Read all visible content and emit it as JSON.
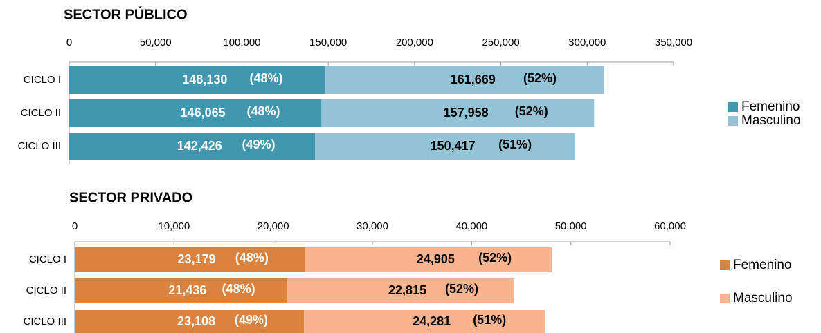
{
  "chart_data": [
    {
      "type": "bar",
      "orientation": "horizontal",
      "stacked": true,
      "title": "SECTOR PÚBLICO",
      "categories": [
        "CICLO I",
        "CICLO II",
        "CICLO III"
      ],
      "series": [
        {
          "name": "Femenino",
          "color": "#3f97b0",
          "label_color": "#ffffff",
          "values": [
            148130,
            146065,
            142426
          ],
          "value_labels": [
            "148,130",
            "146,065",
            "142,426"
          ],
          "share_labels": [
            "(48%)",
            "(48%)",
            "(49%)"
          ]
        },
        {
          "name": "Masculino",
          "color": "#93c4d6",
          "label_color": "#000000",
          "values": [
            161669,
            157958,
            150417
          ],
          "value_labels": [
            "161,669",
            "157,958",
            "150,417"
          ],
          "share_labels": [
            "(52%)",
            "(52%)",
            "(51%)"
          ]
        }
      ],
      "xlim": [
        0,
        350000
      ],
      "xticks": [
        0,
        {
          "value": 50000,
          "label": "50,000"
        },
        {
          "value": 100000,
          "label": "100,000"
        },
        {
          "value": 150000,
          "label": "150,000"
        },
        {
          "value": 200000,
          "label": "200,000"
        },
        {
          "value": 250000,
          "label": "250,000"
        },
        {
          "value": 300000,
          "label": "300,000"
        },
        {
          "value": 350000,
          "label": "350,000"
        }
      ],
      "legend": "right"
    },
    {
      "type": "bar",
      "orientation": "horizontal",
      "stacked": true,
      "title": "SECTOR PRIVADO",
      "categories": [
        "CICLO I",
        "CICLO II",
        "CICLO III"
      ],
      "series": [
        {
          "name": "Femenino",
          "color": "#d9833f",
          "label_color": "#ffffff",
          "values": [
            23179,
            21436,
            23108
          ],
          "value_labels": [
            "23,179",
            "21,436",
            "23,108"
          ],
          "share_labels": [
            "(48%)",
            "(48%)",
            "(49%)"
          ]
        },
        {
          "name": "Masculino",
          "color": "#f7b48f",
          "label_color": "#000000",
          "values": [
            24905,
            22815,
            24281
          ],
          "value_labels": [
            "24,905",
            "22,815",
            "24,281"
          ],
          "share_labels": [
            "(52%)",
            "(52%)",
            "(51%)"
          ]
        }
      ],
      "xlim": [
        0,
        60000
      ],
      "xticks": [
        0,
        {
          "value": 10000,
          "label": "10,000"
        },
        {
          "value": 20000,
          "label": "20,000"
        },
        {
          "value": 30000,
          "label": "30,000"
        },
        {
          "value": 40000,
          "label": "40,000"
        },
        {
          "value": 50000,
          "label": "50,000"
        },
        {
          "value": 60000,
          "label": "60,000"
        }
      ],
      "legend": "right"
    }
  ]
}
